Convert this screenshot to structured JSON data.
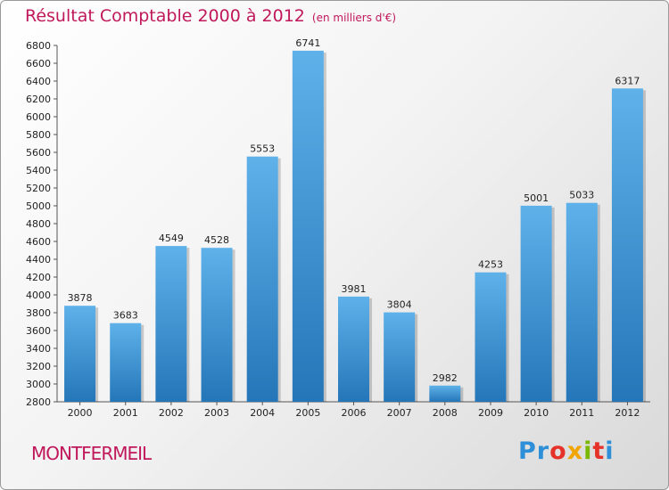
{
  "chart_data": {
    "type": "bar",
    "title": "Résultat Comptable 2000 à 2012",
    "subtitle": "(en milliers d'€)",
    "categories": [
      "2000",
      "2001",
      "2002",
      "2003",
      "2004",
      "2005",
      "2006",
      "2007",
      "2008",
      "2009",
      "2010",
      "2011",
      "2012"
    ],
    "values": [
      3878,
      3683,
      4549,
      4528,
      5553,
      6741,
      3981,
      3804,
      2982,
      4253,
      5001,
      5033,
      6317
    ],
    "ylim": [
      2800,
      6800
    ],
    "yticks": [
      2800,
      3000,
      3200,
      3400,
      3600,
      3800,
      4000,
      4200,
      4400,
      4600,
      4800,
      5000,
      5200,
      5400,
      5600,
      5800,
      6000,
      6200,
      6400,
      6600,
      6800
    ],
    "xlabel": "",
    "ylabel": "",
    "grid": false
  },
  "footer": {
    "city": "MONTFERMEIL"
  },
  "brand": {
    "letters": [
      "P",
      "r",
      "o",
      "x",
      "i",
      "t",
      "i"
    ],
    "colors": [
      "#2d8fd8",
      "#2d8fd8",
      "#e6332a",
      "#f0a500",
      "#7ab800",
      "#e6332a",
      "#2d8fd8"
    ]
  },
  "colors": {
    "bar_top": "#5fb1ea",
    "bar_bottom": "#2476b8",
    "accent": "#c0185a"
  }
}
